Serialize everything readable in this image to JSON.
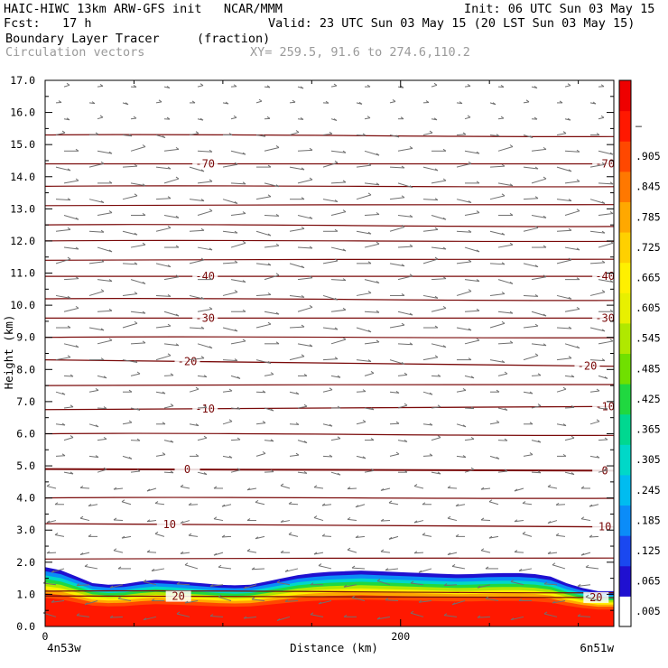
{
  "header": {
    "line1_left": "HAIC-HIWC 13km ARW-GFS init   NCAR/MMM",
    "line1_right": "Init: 06 UTC Sun 03 May 15",
    "line2_left": "Fcst:   17 h",
    "line2_right": "Valid: 23 UTC Sun 03 May 15 (20 LST Sun 03 May 15)",
    "line3_left": "Boundary Layer Tracer",
    "line3_mid": "(fraction)",
    "line4_left": "Circulation vectors",
    "line4_mid": "XY= 259.5, 91.6 to 274.6,110.2"
  },
  "chart_data": {
    "type": "cross-section",
    "ylabel": "Height (km)",
    "xlabel": "Distance (km)",
    "xlim": [
      0,
      320
    ],
    "ylim": [
      0,
      17
    ],
    "y_ticks": [
      "0.0",
      "1.0",
      "2.0",
      "3.0",
      "4.0",
      "5.0",
      "6.0",
      "7.0",
      "8.0",
      "9.0",
      "10.0",
      "11.0",
      "12.0",
      "13.0",
      "14.0",
      "15.0",
      "16.0",
      "17.0"
    ],
    "x_ticks": [
      {
        "value": 0,
        "label": "0"
      },
      {
        "value": 200,
        "label": "200"
      }
    ],
    "x_endpoints": {
      "left": "4n53w",
      "right": "6n51w"
    },
    "colorbar": {
      "labels": [
        ".005",
        ".065",
        ".125",
        ".185",
        ".245",
        ".305",
        ".365",
        ".425",
        ".485",
        ".545",
        ".605",
        ".665",
        ".725",
        ".785",
        ".845",
        ".905",
        "–"
      ],
      "colors": [
        "#ffffff",
        "#1f10d0",
        "#1a48f0",
        "#0b8cf8",
        "#00bcf0",
        "#00d8c8",
        "#00d890",
        "#20d840",
        "#70e000",
        "#b0e800",
        "#e8f000",
        "#fff000",
        "#ffd000",
        "#ffa800",
        "#ff7800",
        "#ff4800",
        "#ff1800",
        "#ee0000"
      ]
    },
    "tracer_top_km": [
      1.85,
      1.75,
      1.55,
      1.35,
      1.3,
      1.32,
      1.4,
      1.45,
      1.42,
      1.38,
      1.34,
      1.3,
      1.28,
      1.3,
      1.4,
      1.5,
      1.6,
      1.66,
      1.7,
      1.72,
      1.74,
      1.72,
      1.7,
      1.68,
      1.66,
      1.64,
      1.62,
      1.63,
      1.65,
      1.66,
      1.66,
      1.63,
      1.55,
      1.35,
      1.2,
      1.1,
      1.1
    ],
    "temperature_contours": [
      {
        "label": "-70",
        "heights_km": [
          14.4,
          14.4
        ],
        "label_x_km": [
          90,
          315
        ]
      },
      {
        "label": "-40",
        "heights_km": [
          10.9,
          10.9
        ],
        "label_x_km": [
          90,
          315
        ]
      },
      {
        "label": "-30",
        "heights_km": [
          9.6,
          9.6
        ],
        "label_x_km": [
          90,
          315
        ]
      },
      {
        "label": "-20",
        "heights_km": [
          8.3,
          8.1
        ],
        "label_x_km": [
          80,
          305
        ]
      },
      {
        "label": "-10",
        "heights_km": [
          6.75,
          6.85
        ],
        "label_x_km": [
          90,
          315
        ]
      },
      {
        "label": "0",
        "heights_km": [
          4.9,
          4.85
        ],
        "label_x_km": [
          80,
          315
        ]
      },
      {
        "label": "10",
        "heights_km": [
          3.2,
          3.1
        ],
        "label_x_km": [
          70,
          315
        ]
      },
      {
        "label": "20",
        "heights_km": [
          0.95,
          0.9
        ],
        "label_x_km": [
          75,
          310
        ]
      }
    ],
    "theta_lines_km": [
      15.3,
      13.7,
      13.1,
      12.5,
      12.0,
      11.4,
      10.2,
      9.0,
      7.5,
      6.0,
      4.0,
      2.1,
      1.1
    ]
  }
}
